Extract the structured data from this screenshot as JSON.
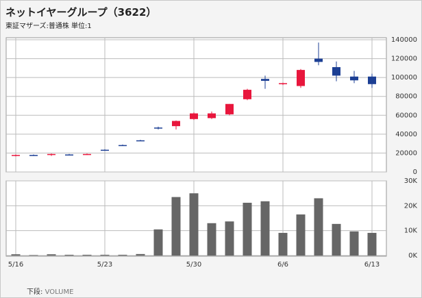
{
  "header": {
    "title": "ネットイヤーグループ（3622）",
    "subtitle": "東証マザーズ:普通株 単位:1"
  },
  "chart_data": [
    {
      "type": "candlestick",
      "categories": [
        "5/16",
        null,
        null,
        null,
        null,
        "5/23",
        null,
        null,
        null,
        null,
        "5/30",
        null,
        null,
        null,
        null,
        "6/6",
        null,
        null,
        null,
        null,
        "6/13"
      ],
      "open": [
        17000,
        18000,
        18000,
        18500,
        18500,
        23500,
        28500,
        33500,
        47000,
        48500,
        56000,
        57000,
        61000,
        77000,
        98500,
        93000,
        91000,
        120000,
        111000,
        101000,
        101000
      ],
      "high": [
        18500,
        18500,
        19500,
        19000,
        19500,
        24000,
        29000,
        34000,
        48000,
        54500,
        63000,
        64000,
        72000,
        88000,
        102000,
        94500,
        109000,
        137000,
        117000,
        107000,
        104000
      ],
      "low": [
        16500,
        17000,
        17000,
        17500,
        18000,
        23000,
        28000,
        33000,
        45000,
        45000,
        55000,
        56000,
        60000,
        76000,
        88000,
        92000,
        89000,
        113000,
        96000,
        94000,
        89000
      ],
      "close": [
        18000,
        17500,
        19000,
        18000,
        19000,
        23000,
        28000,
        33000,
        46000,
        54000,
        62000,
        62000,
        72000,
        87000,
        96500,
        94000,
        108000,
        116500,
        102000,
        97000,
        93000
      ],
      "up_color": "#e8163c",
      "down_color": "#1c3f94",
      "ylim": [
        0,
        140000
      ],
      "yticks": [
        0,
        20000,
        40000,
        60000,
        80000,
        100000,
        120000,
        140000
      ],
      "grid": true
    },
    {
      "type": "bar",
      "values": [
        500,
        200,
        500,
        300,
        300,
        300,
        300,
        600,
        10500,
        23500,
        25000,
        13000,
        13700,
        21200,
        21800,
        9100,
        16500,
        23000,
        12700,
        9700,
        9100
      ],
      "color": "#666666",
      "ylim": [
        0,
        30000
      ],
      "yticks": [
        {
          "value": 0,
          "label": "0K"
        },
        {
          "value": 10000,
          "label": "10K"
        },
        {
          "value": 20000,
          "label": "20K"
        },
        {
          "value": 30000,
          "label": "30K"
        }
      ],
      "grid": true
    }
  ],
  "footer": {
    "prefix": "下段:",
    "indicator": "VOLUME"
  }
}
